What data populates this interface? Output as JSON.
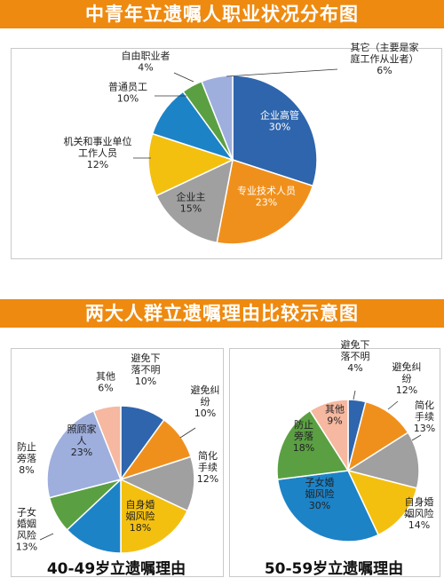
{
  "header": {
    "title_top": "中青年立遗嘱人职业状况分布图",
    "title_mid": "两大人群立遗嘱理由比较示意图"
  },
  "subcharts": {
    "left_title": "40-49岁立遗嘱理由",
    "right_title": "50-59岁立遗嘱理由"
  },
  "chart_data": [
    {
      "type": "pie",
      "title": "中青年立遗嘱人职业状况分布图",
      "slices": [
        {
          "label": [
            "企业高管"
          ],
          "value": 30,
          "pct": "30%",
          "color": "#2e65ad"
        },
        {
          "label": [
            "专业技术人员"
          ],
          "value": 23,
          "pct": "23%",
          "color": "#f0901c"
        },
        {
          "label": [
            "企业主"
          ],
          "value": 15,
          "pct": "15%",
          "color": "#a0a0a0"
        },
        {
          "label": [
            "机关和事业单位",
            "工作人员"
          ],
          "value": 12,
          "pct": "12%",
          "color": "#f4c010"
        },
        {
          "label": [
            "普通员工"
          ],
          "value": 10,
          "pct": "10%",
          "color": "#1d83c7"
        },
        {
          "label": [
            "自由职业者"
          ],
          "value": 4,
          "pct": "4%",
          "color": "#5aa042"
        },
        {
          "label": [
            "其它（主要是家",
            "庭工作从业者）"
          ],
          "value": 6,
          "pct": "6%",
          "color": "#9eaedd"
        }
      ]
    },
    {
      "type": "pie",
      "title": "40-49岁立遗嘱理由",
      "slices": [
        {
          "label": [
            "避免下",
            "落不明"
          ],
          "value": 10,
          "pct": "10%",
          "color": "#2e65ad"
        },
        {
          "label": [
            "避免纠",
            "纷"
          ],
          "value": 10,
          "pct": "10%",
          "color": "#f0901c"
        },
        {
          "label": [
            "简化",
            "手续"
          ],
          "value": 12,
          "pct": "12%",
          "color": "#a0a0a0"
        },
        {
          "label": [
            "自身婚",
            "姻风险"
          ],
          "value": 18,
          "pct": "18%",
          "color": "#f4c010"
        },
        {
          "label": [
            "子女",
            "婚姻",
            "风险"
          ],
          "value": 13,
          "pct": "13%",
          "color": "#1d83c7"
        },
        {
          "label": [
            "防止",
            "旁落"
          ],
          "value": 8,
          "pct": "8%",
          "color": "#5aa042"
        },
        {
          "label": [
            "照顾家",
            "人"
          ],
          "value": 23,
          "pct": "23%",
          "color": "#9eaedd"
        },
        {
          "label": [
            "其他"
          ],
          "value": 6,
          "pct": "6%",
          "color": "#f6b8a0"
        }
      ]
    },
    {
      "type": "pie",
      "title": "50-59岁立遗嘱理由",
      "slices": [
        {
          "label": [
            "避免下",
            "落不明"
          ],
          "value": 4,
          "pct": "4%",
          "color": "#2e65ad"
        },
        {
          "label": [
            "避免纠",
            "纷"
          ],
          "value": 12,
          "pct": "12%",
          "color": "#f0901c"
        },
        {
          "label": [
            "简化",
            "手续"
          ],
          "value": 13,
          "pct": "13%",
          "color": "#a0a0a0"
        },
        {
          "label": [
            "自身婚",
            "姻风险"
          ],
          "value": 14,
          "pct": "14%",
          "color": "#f4c010"
        },
        {
          "label": [
            "子女婚",
            "姻风险"
          ],
          "value": 30,
          "pct": "30%",
          "color": "#1d83c7"
        },
        {
          "label": [
            "防止",
            "旁落"
          ],
          "value": 18,
          "pct": "18%",
          "color": "#5aa042"
        },
        {
          "label": [
            "其他"
          ],
          "value": 9,
          "pct": "9%",
          "color": "#f6b8a0"
        }
      ]
    }
  ]
}
